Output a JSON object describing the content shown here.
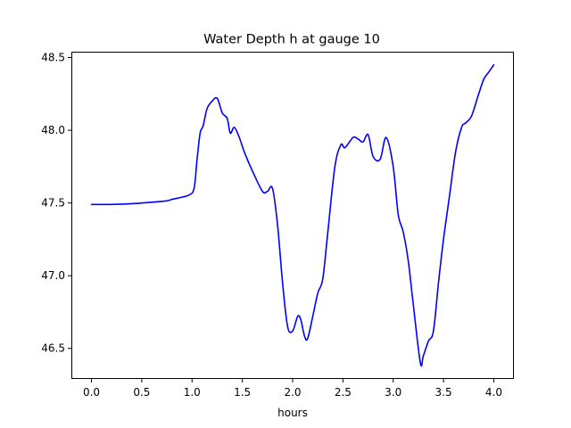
{
  "chart_data": {
    "type": "line",
    "title": "Water Depth h at gauge 10",
    "xlabel": "hours",
    "ylabel": "",
    "xlim": [
      -0.2,
      4.2
    ],
    "ylim": [
      46.29,
      48.54
    ],
    "xticks": [
      0.0,
      0.5,
      1.0,
      1.5,
      2.0,
      2.5,
      3.0,
      3.5,
      4.0
    ],
    "xtick_labels": [
      "0.0",
      "0.5",
      "1.0",
      "1.5",
      "2.0",
      "2.5",
      "3.0",
      "3.5",
      "4.0"
    ],
    "yticks": [
      46.5,
      47.0,
      47.5,
      48.0,
      48.5
    ],
    "ytick_labels": [
      "46.5",
      "47.0",
      "47.5",
      "48.0",
      "48.5"
    ],
    "grid": false,
    "colors": {
      "line": "#0000ff"
    },
    "series": [
      {
        "x": [
          0.0,
          0.2,
          0.4,
          0.6,
          0.75,
          0.8,
          0.9,
          0.97,
          1.02,
          1.05,
          1.08,
          1.11,
          1.15,
          1.2,
          1.25,
          1.3,
          1.35,
          1.38,
          1.42,
          1.47,
          1.52,
          1.6,
          1.7,
          1.75,
          1.8,
          1.85,
          1.9,
          1.95,
          2.0,
          2.05,
          2.08,
          2.12,
          2.15,
          2.2,
          2.25,
          2.3,
          2.35,
          2.42,
          2.48,
          2.52,
          2.6,
          2.65,
          2.7,
          2.75,
          2.8,
          2.87,
          2.93,
          3.0,
          3.05,
          3.1,
          3.15,
          3.2,
          3.27,
          3.3,
          3.35,
          3.4,
          3.45,
          3.5,
          3.56,
          3.62,
          3.68,
          3.72,
          3.78,
          3.85,
          3.9,
          3.95,
          4.0
        ],
        "y": [
          47.49,
          47.49,
          47.495,
          47.505,
          47.515,
          47.525,
          47.54,
          47.555,
          47.6,
          47.8,
          47.98,
          48.03,
          48.15,
          48.2,
          48.22,
          48.12,
          48.08,
          47.98,
          48.02,
          47.95,
          47.85,
          47.72,
          47.58,
          47.58,
          47.6,
          47.35,
          46.95,
          46.65,
          46.62,
          46.72,
          46.7,
          46.58,
          46.57,
          46.72,
          46.88,
          46.98,
          47.3,
          47.75,
          47.9,
          47.88,
          47.95,
          47.94,
          47.92,
          47.97,
          47.82,
          47.8,
          47.95,
          47.75,
          47.42,
          47.3,
          47.1,
          46.8,
          46.4,
          46.45,
          46.55,
          46.62,
          46.95,
          47.25,
          47.55,
          47.85,
          48.02,
          48.05,
          48.1,
          48.25,
          48.35,
          48.4,
          48.45
        ]
      }
    ]
  }
}
